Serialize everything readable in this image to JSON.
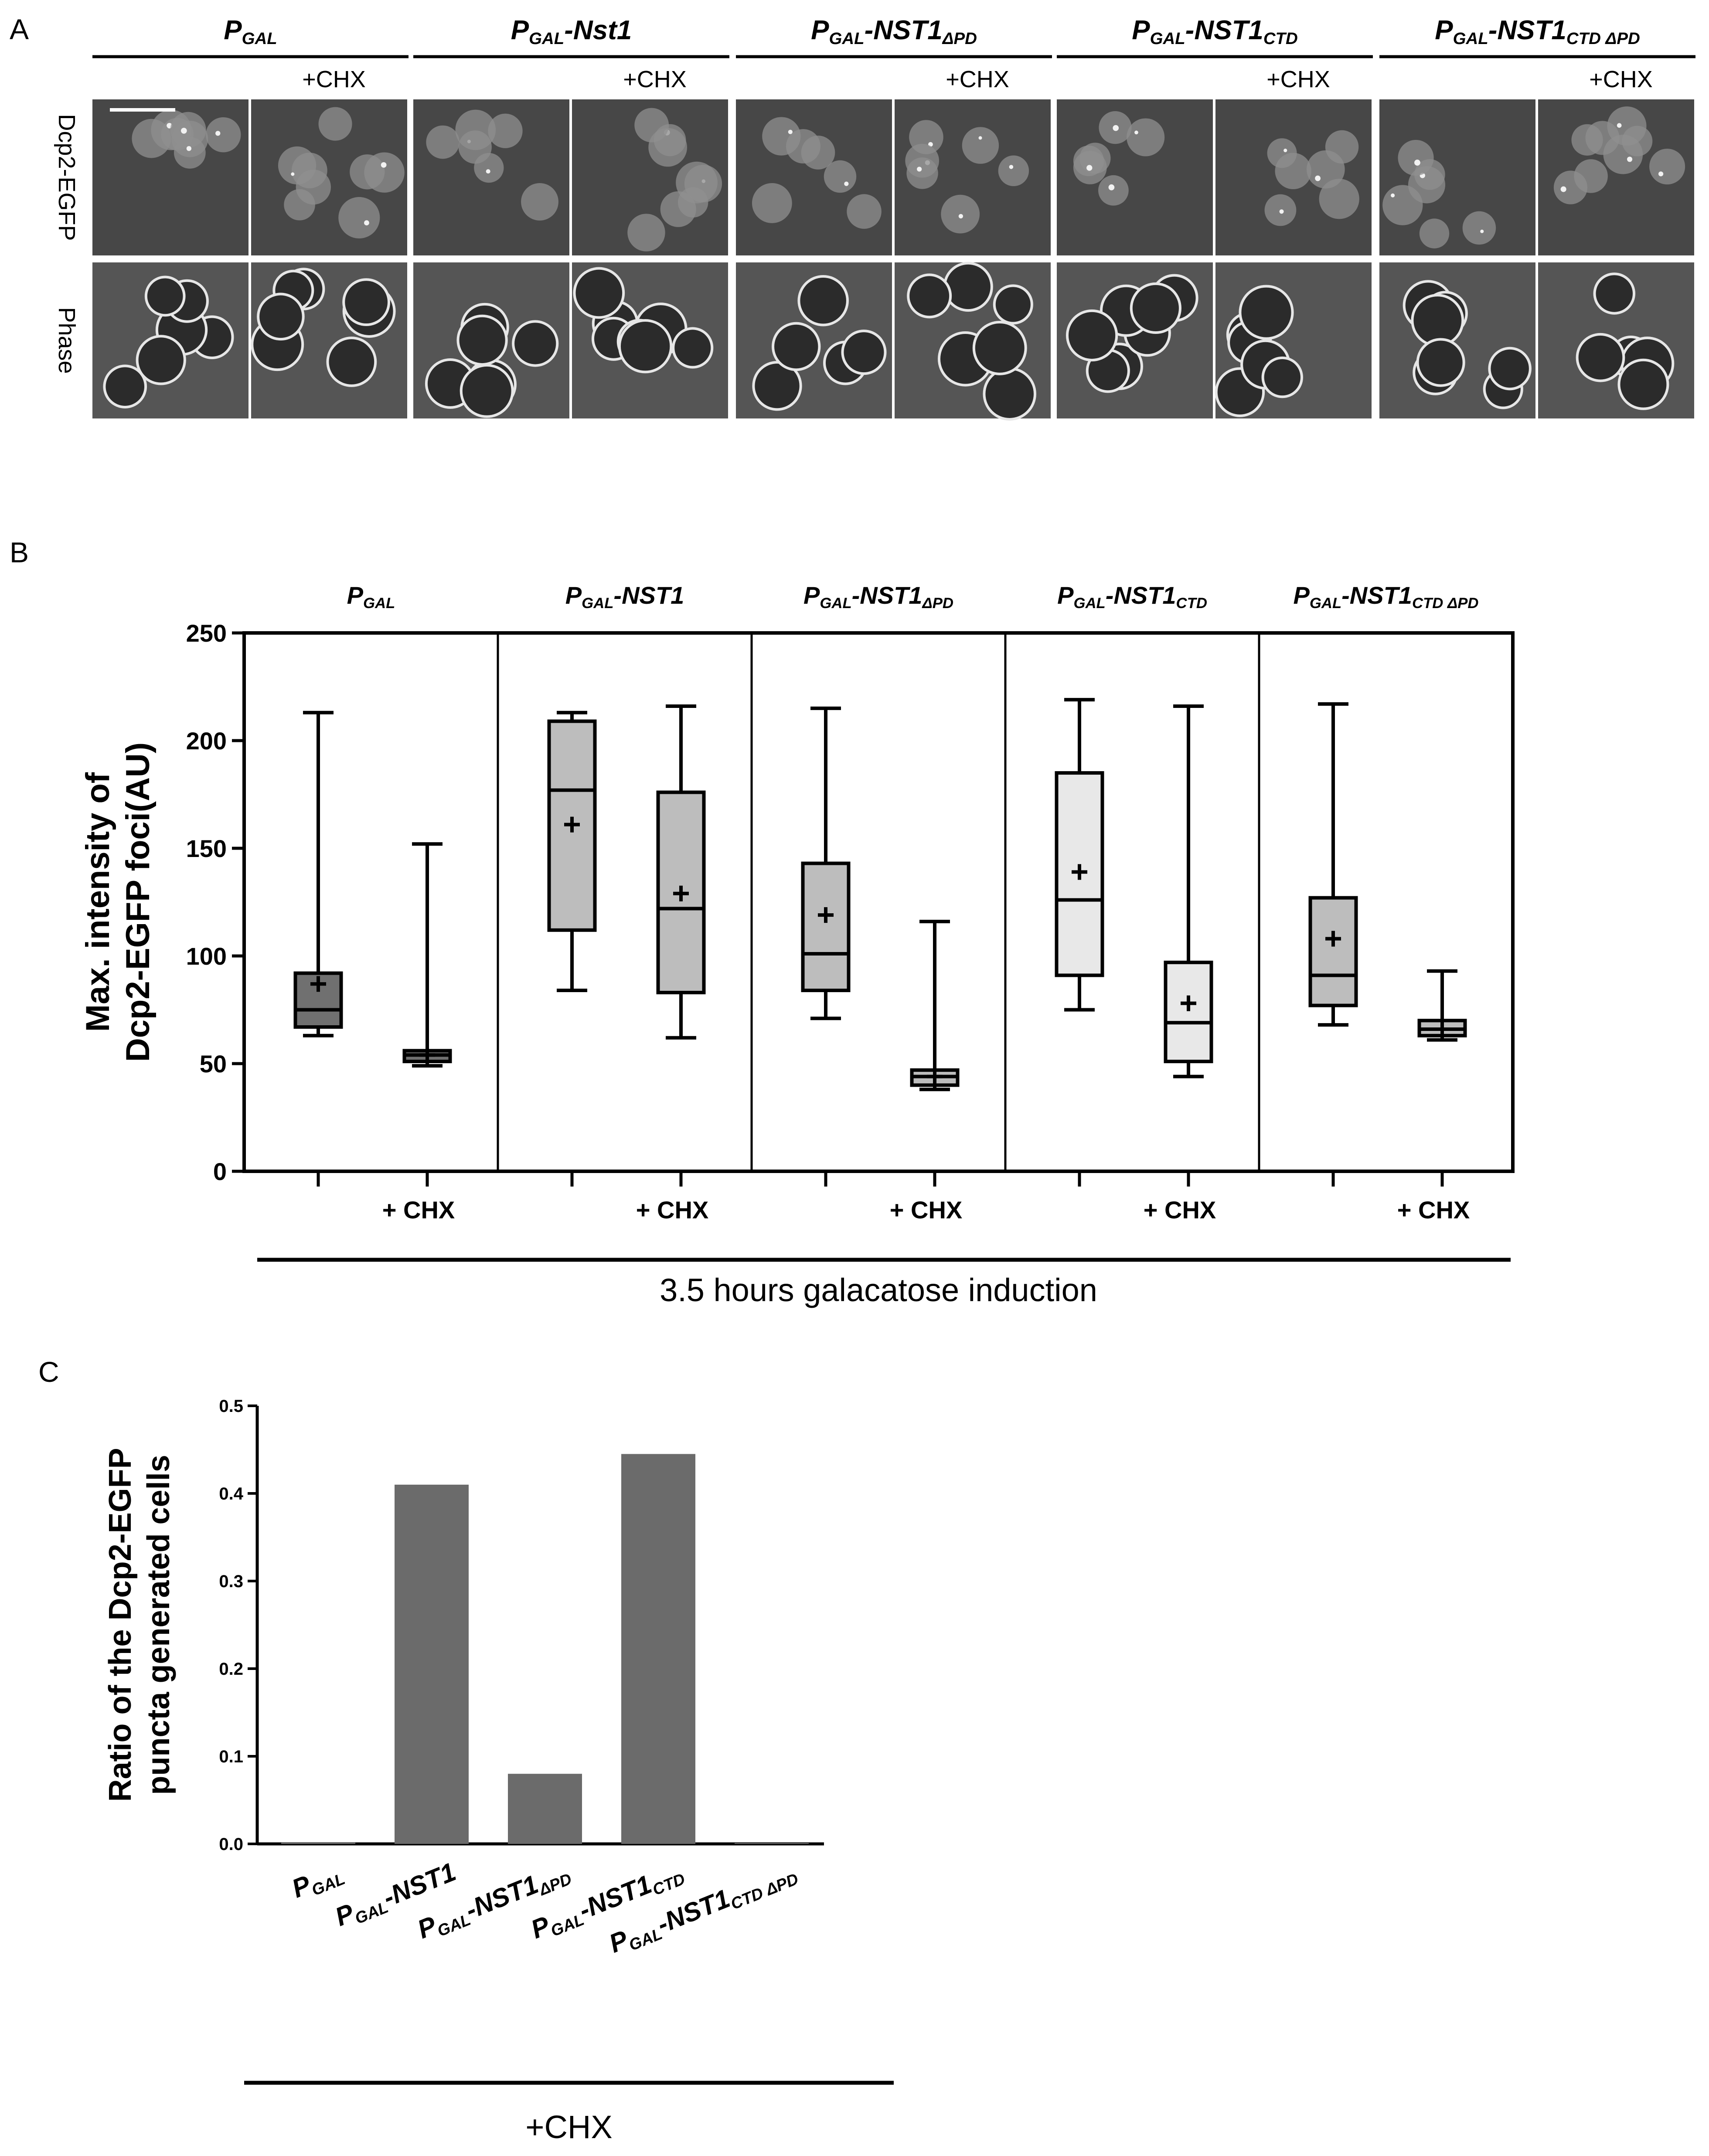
{
  "panels": {
    "a": {
      "letter": "A"
    },
    "b": {
      "letter": "B"
    },
    "c": {
      "letter": "C"
    }
  },
  "constructs": [
    {
      "p": "P",
      "sub": "GAL",
      "name": ""
    },
    {
      "p": "P",
      "sub": "GAL",
      "name": "-NST1"
    },
    {
      "p": "P",
      "sub": "GAL",
      "name": "-NST1",
      "namesub": "ΔPD"
    },
    {
      "p": "P",
      "sub": "GAL",
      "name": "-NST1",
      "namesub": "CTD"
    },
    {
      "p": "P",
      "sub": "GAL",
      "name": "-NST1",
      "namesub": "CTD ΔPD"
    }
  ],
  "panel_a": {
    "headers": [
      {
        "p": "P",
        "sub": "GAL",
        "name": "",
        "namesub": ""
      },
      {
        "p": "P",
        "sub": "GAL",
        "name": "-Nst1",
        "namesub": ""
      },
      {
        "p": "P",
        "sub": "GAL",
        "name": "-NST1",
        "namesub": "ΔPD"
      },
      {
        "p": "P",
        "sub": "GAL",
        "name": "-NST1",
        "namesub": "CTD"
      },
      {
        "p": "P",
        "sub": "GAL",
        "name": "-NST1",
        "namesub": "CTD ΔPD"
      }
    ],
    "chx_label": "+CHX",
    "row_labels": [
      "Dcp2-EGFP",
      "Phase"
    ]
  },
  "colors": {
    "box_dark": "#707070",
    "box_mid": "#bdbdbd",
    "box_light": "#d9d9d9",
    "box_lighter": "#e8e8e8",
    "bar": "#6b6b6b",
    "micro_bg": "#474747",
    "phase_bg": "#555555"
  },
  "chart_data": [
    {
      "type": "box",
      "panel": "B",
      "ylabel_line1": "Max. intensity of",
      "ylabel_line2": "Dcp2-EGFP foci(AU)",
      "ylim": [
        0,
        250
      ],
      "yticks": [
        0,
        50,
        100,
        150,
        200,
        250
      ],
      "group_label": "+ CHX",
      "footer": "3.5 hours galacatose induction",
      "groups": [
        {
          "untreated": {
            "min": 63,
            "q1": 67,
            "median": 75,
            "q3": 92,
            "max": 213,
            "mean": 87
          },
          "chx": {
            "min": 49,
            "q1": 51,
            "median": 54,
            "q3": 56,
            "max": 152,
            "mean": 54
          }
        },
        {
          "untreated": {
            "min": 84,
            "q1": 112,
            "median": 177,
            "q3": 209,
            "max": 213,
            "mean": 161
          },
          "chx": {
            "min": 62,
            "q1": 83,
            "median": 122,
            "q3": 176,
            "max": 216,
            "mean": 129
          }
        },
        {
          "untreated": {
            "min": 71,
            "q1": 84,
            "median": 101,
            "q3": 143,
            "max": 215,
            "mean": 119
          },
          "chx": {
            "min": 38,
            "q1": 40,
            "median": 44,
            "q3": 47,
            "max": 116,
            "mean": 44
          }
        },
        {
          "untreated": {
            "min": 75,
            "q1": 91,
            "median": 126,
            "q3": 185,
            "max": 219,
            "mean": 139
          },
          "chx": {
            "min": 44,
            "q1": 51,
            "median": 69,
            "q3": 97,
            "max": 216,
            "mean": 78
          }
        },
        {
          "untreated": {
            "min": 68,
            "q1": 77,
            "median": 91,
            "q3": 127,
            "max": 217,
            "mean": 108
          },
          "chx": {
            "min": 61,
            "q1": 63,
            "median": 66,
            "q3": 70,
            "max": 93,
            "mean": 66
          }
        }
      ]
    },
    {
      "type": "bar",
      "panel": "C",
      "ylabel_line1": "Ratio of the Dcp2-EGFP",
      "ylabel_line2": "puncta generated cells",
      "ylim": [
        0,
        0.5
      ],
      "yticks": [
        "0.0",
        "0.1",
        "0.2",
        "0.3",
        "0.4",
        "0.5"
      ],
      "values": [
        0.002,
        0.41,
        0.08,
        0.445,
        0.0
      ],
      "footer": "+CHX"
    }
  ]
}
